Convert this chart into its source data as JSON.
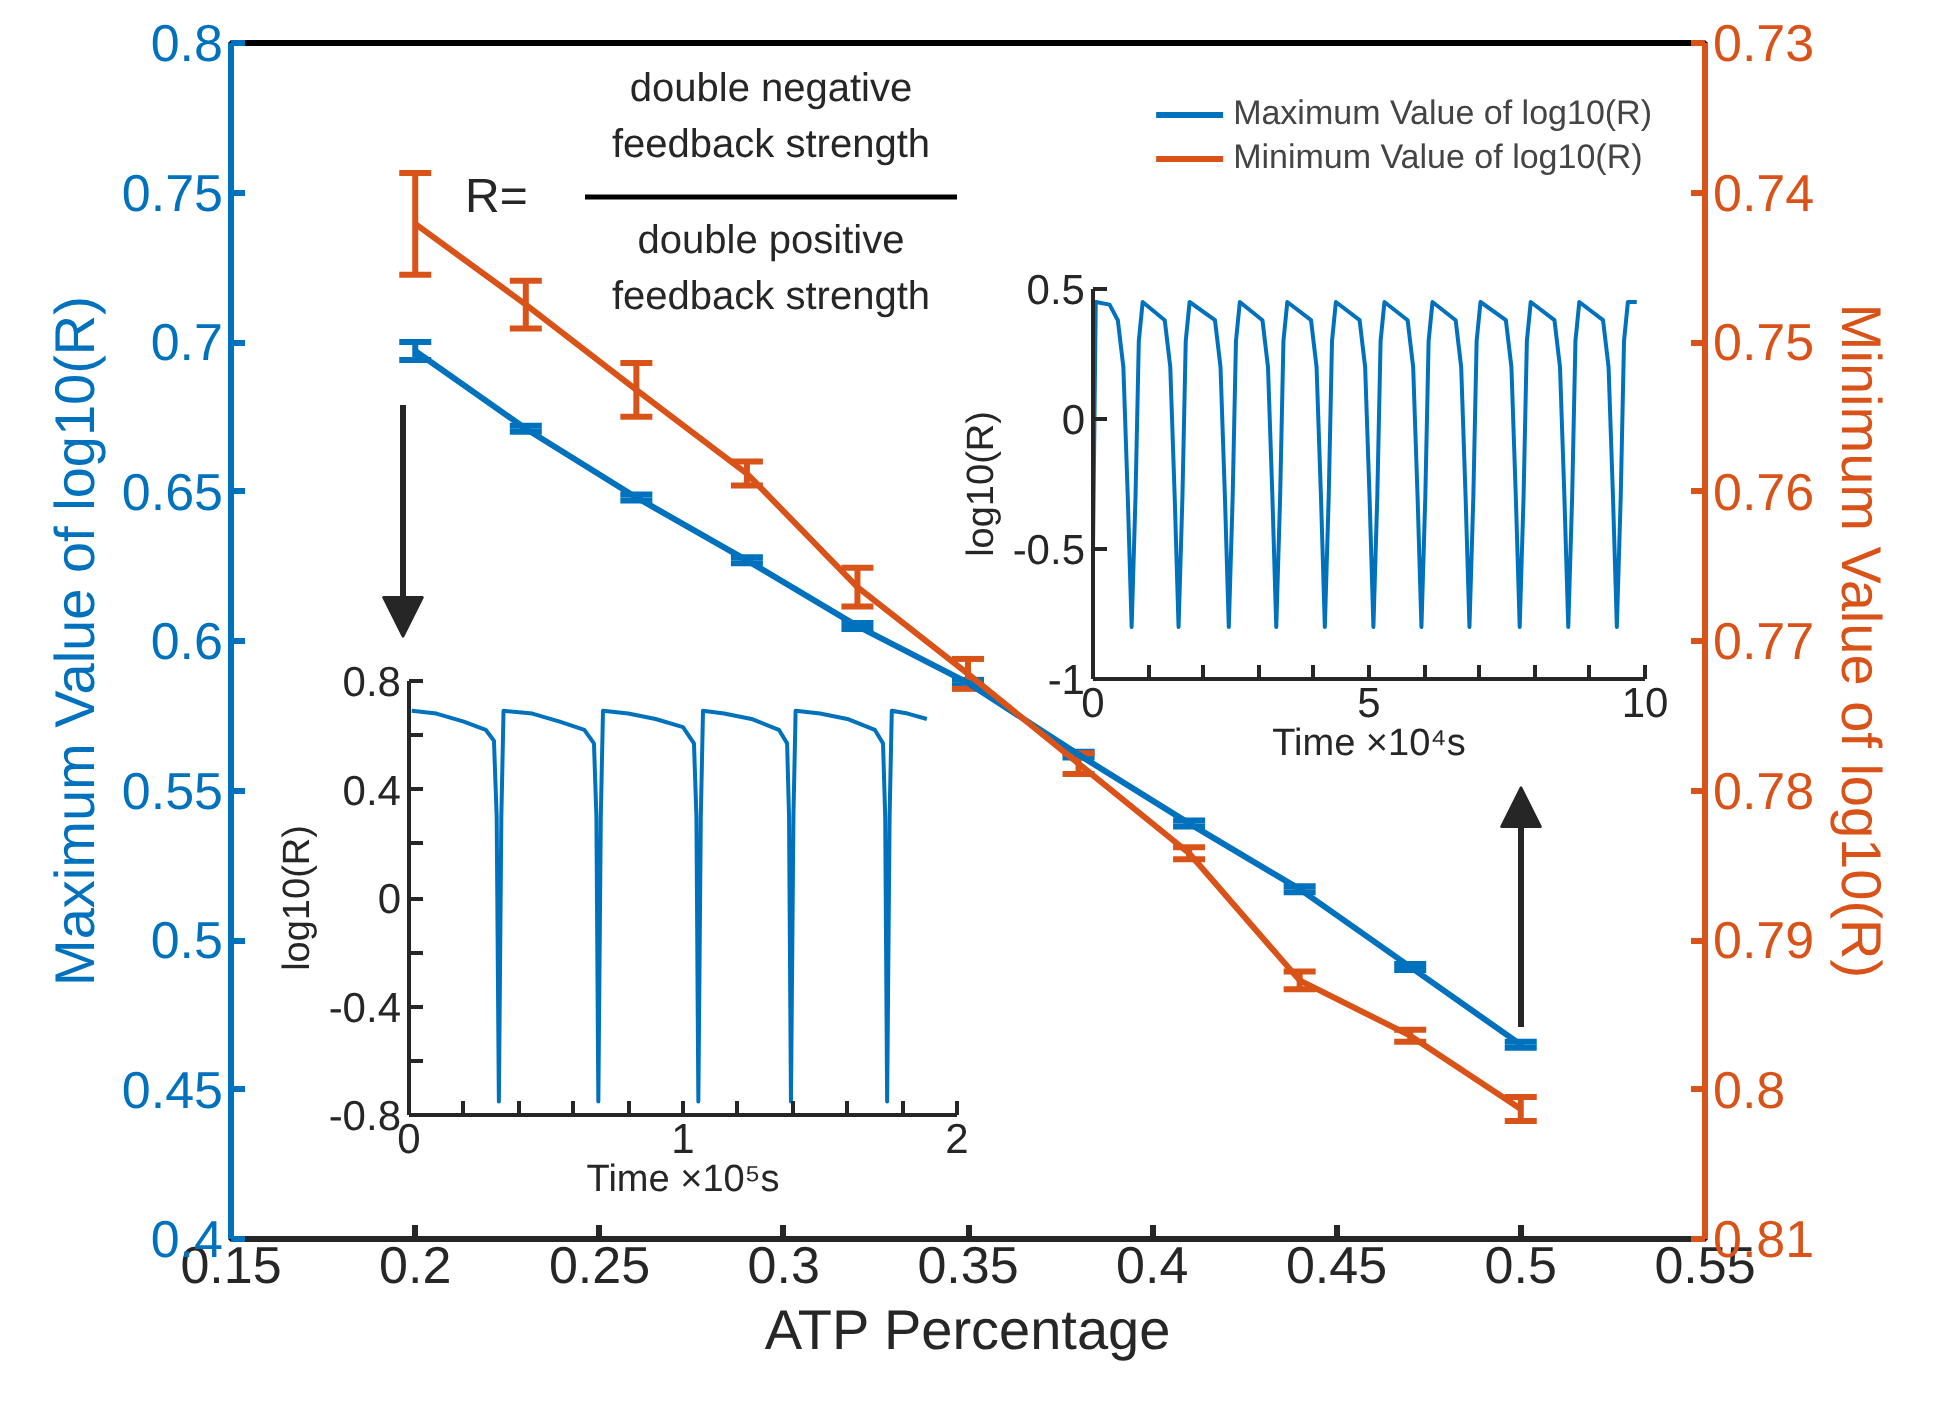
{
  "chart_data": [
    {
      "type": "line",
      "xlabel": "ATP Percentage",
      "ylabel": "Maximum Value of log10(R)",
      "y2label": "Minimum Value of log10(R)",
      "xlim": [
        0.15,
        0.55
      ],
      "xticks": [
        0.15,
        0.2,
        0.25,
        0.3,
        0.35,
        0.4,
        0.45,
        0.5,
        0.55
      ],
      "ylim": [
        0.4,
        0.8
      ],
      "yticks": [
        0.4,
        0.45,
        0.5,
        0.55,
        0.6,
        0.65,
        0.7,
        0.75,
        0.8
      ],
      "y2lim": [
        0.81,
        0.73
      ],
      "y2ticks": [
        0.73,
        0.74,
        0.75,
        0.76,
        0.77,
        0.78,
        0.79,
        0.8,
        0.81
      ],
      "x": [
        0.2,
        0.23,
        0.26,
        0.29,
        0.32,
        0.35,
        0.38,
        0.41,
        0.44,
        0.47,
        0.5
      ],
      "series": [
        {
          "name": "Maximum Value of log10(R)",
          "color": "#0072bd",
          "values": [
            0.697,
            0.671,
            0.648,
            0.627,
            0.605,
            0.586,
            0.562,
            0.539,
            0.517,
            0.491,
            0.465
          ],
          "errors": [
            0.003,
            0.001,
            0.001,
            0.001,
            0.001,
            0.001,
            0.001,
            0.001,
            0.001,
            0.001,
            0.001
          ]
        },
        {
          "name": "Minimum Value of log10(R)",
          "color": "#d95319",
          "axis": "y2",
          "values": [
            0.7421,
            0.7475,
            0.7532,
            0.7588,
            0.7664,
            0.7722,
            0.7782,
            0.7842,
            0.7927,
            0.7964,
            0.8013
          ],
          "errors": [
            0.0034,
            0.0016,
            0.0018,
            0.0008,
            0.0013,
            0.001,
            0.0007,
            0.0004,
            0.0006,
            0.0004,
            0.0008
          ]
        }
      ],
      "legend": "top right",
      "annotations": [
        "R=",
        "double negative\nfeedback strength",
        "double positive\nfeedback strength"
      ]
    },
    {
      "type": "line",
      "xlabel": "Time ×10⁵s",
      "ylabel": "log10(R)",
      "xlim": [
        0,
        2
      ],
      "xticks": [
        0,
        {
          "value": 0.2,
          "label": null
        },
        {
          "value": 0.4,
          "label": null
        },
        {
          "value": 0.6,
          "label": null
        },
        {
          "value": 0.8,
          "label": null
        },
        1,
        {
          "value": 1.2,
          "label": null
        },
        {
          "value": 1.4,
          "label": null
        },
        {
          "value": 1.6,
          "label": null
        },
        {
          "value": 1.8,
          "label": null
        },
        2
      ],
      "ylim": [
        -0.8,
        0.8
      ],
      "yticks": [
        -0.8,
        {
          "value": -0.6,
          "label": null
        },
        -0.4,
        {
          "value": -0.2,
          "label": null
        },
        0,
        {
          "value": 0.2,
          "label": null
        },
        0.4,
        {
          "value": 0.6,
          "label": null
        },
        0.8
      ],
      "series": [
        {
          "color": "#0072bd",
          "x": [
            0.01,
            0.1,
            0.2,
            0.28,
            0.31,
            0.32,
            0.328,
            0.337,
            0.345,
            0.45,
            0.55,
            0.64,
            0.675,
            0.684,
            0.691,
            0.7,
            0.708,
            0.8,
            0.9,
            1.0,
            1.04,
            1.049,
            1.056,
            1.065,
            1.073,
            1.15,
            1.25,
            1.35,
            1.38,
            1.387,
            1.394,
            1.403,
            1.411,
            1.5,
            1.6,
            1.7,
            1.73,
            1.738,
            1.745,
            1.754,
            1.762,
            1.82,
            1.89
          ],
          "values": [
            0.69,
            0.68,
            0.65,
            0.62,
            0.58,
            0.3,
            -0.75,
            0.3,
            0.69,
            0.68,
            0.65,
            0.62,
            0.57,
            0.3,
            -0.75,
            0.3,
            0.69,
            0.68,
            0.66,
            0.63,
            0.57,
            0.3,
            -0.75,
            0.3,
            0.69,
            0.68,
            0.66,
            0.62,
            0.57,
            0.3,
            -0.75,
            0.3,
            0.69,
            0.68,
            0.66,
            0.62,
            0.57,
            0.3,
            -0.75,
            0.3,
            0.69,
            0.68,
            0.66
          ]
        }
      ]
    },
    {
      "type": "line",
      "xlabel": "Time ×10⁴s",
      "ylabel": "log10(R)",
      "xlim": [
        0,
        10
      ],
      "xticks": [
        0,
        {
          "value": 1,
          "label": null
        },
        {
          "value": 2,
          "label": null
        },
        {
          "value": 3,
          "label": null
        },
        {
          "value": 4,
          "label": null
        },
        5,
        {
          "value": 6,
          "label": null
        },
        {
          "value": 7,
          "label": null
        },
        {
          "value": 8,
          "label": null
        },
        {
          "value": 9,
          "label": null
        },
        10
      ],
      "ylim": [
        -1,
        0.5
      ],
      "yticks": [
        -1,
        -0.5,
        0,
        0.5
      ],
      "series": [
        {
          "color": "#0072bd",
          "x": [
            0,
            0.05,
            0.3,
            0.45,
            0.55,
            0.63,
            0.7,
            0.77,
            0.83,
            0.9,
            1.3,
            1.4,
            1.48,
            1.55,
            1.62,
            1.68,
            1.75,
            2.21,
            2.31,
            2.39,
            2.46,
            2.53,
            2.59,
            2.66,
            3.07,
            3.17,
            3.25,
            3.32,
            3.39,
            3.45,
            3.52,
            3.95,
            4.05,
            4.13,
            4.2,
            4.27,
            4.33,
            4.4,
            4.83,
            4.93,
            5.01,
            5.08,
            5.15,
            5.21,
            5.28,
            5.7,
            5.8,
            5.88,
            5.95,
            6.02,
            6.08,
            6.15,
            6.57,
            6.67,
            6.75,
            6.82,
            6.89,
            6.95,
            7.02,
            7.48,
            7.58,
            7.66,
            7.73,
            7.8,
            7.86,
            7.93,
            8.36,
            8.46,
            8.54,
            8.61,
            8.68,
            8.74,
            8.81,
            9.24,
            9.34,
            9.42,
            9.49,
            9.56,
            9.62,
            9.69,
            9.85
          ],
          "values": [
            -0.5,
            0.45,
            0.44,
            0.38,
            0.2,
            -0.3,
            -0.8,
            -0.3,
            0.3,
            0.45,
            0.38,
            0.2,
            -0.3,
            -0.8,
            -0.3,
            0.3,
            0.45,
            0.38,
            0.2,
            -0.3,
            -0.8,
            -0.3,
            0.3,
            0.45,
            0.38,
            0.2,
            -0.3,
            -0.8,
            -0.3,
            0.3,
            0.45,
            0.38,
            0.2,
            -0.3,
            -0.8,
            -0.3,
            0.3,
            0.45,
            0.38,
            0.2,
            -0.3,
            -0.8,
            -0.3,
            0.3,
            0.45,
            0.38,
            0.2,
            -0.3,
            -0.8,
            -0.3,
            0.3,
            0.45,
            0.38,
            0.2,
            -0.3,
            -0.8,
            -0.3,
            0.3,
            0.45,
            0.38,
            0.2,
            -0.3,
            -0.8,
            -0.3,
            0.3,
            0.45,
            0.38,
            0.2,
            -0.3,
            -0.8,
            -0.3,
            0.3,
            0.45,
            0.38,
            0.2,
            -0.3,
            -0.8,
            -0.3,
            0.3,
            0.45,
            0.45
          ]
        }
      ]
    }
  ]
}
